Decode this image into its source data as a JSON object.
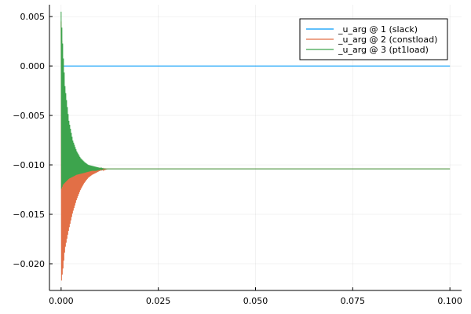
{
  "chart_data": {
    "type": "line",
    "title": "",
    "xlabel": "",
    "ylabel": "",
    "xlim": [
      -0.003,
      0.103
    ],
    "ylim": [
      -0.0227,
      0.0062
    ],
    "grid": true,
    "legend_position": "top-right",
    "x_ticks": [
      0.0,
      0.025,
      0.05,
      0.075,
      0.1
    ],
    "x_tick_labels": [
      "0.000",
      "0.025",
      "0.050",
      "0.075",
      "0.100"
    ],
    "y_ticks": [
      0.005,
      0.0,
      -0.005,
      -0.01,
      -0.015,
      -0.02
    ],
    "y_tick_labels": [
      "0.005",
      "0.000",
      "−0.005",
      "−0.010",
      "−0.015",
      "−0.020"
    ],
    "series": [
      {
        "name": "_u_arg @ 1 (slack)",
        "color": "#009AFA",
        "kind": "line",
        "x": [
          0.0,
          0.1
        ],
        "y": [
          0.0,
          0.0
        ]
      },
      {
        "name": "_u_arg @ 2 (constload)",
        "color": "#E26F46",
        "kind": "oscillation",
        "x_start": 0.0,
        "steady": -0.0104,
        "envelope": {
          "x": [
            0.0,
            0.0005,
            0.001,
            0.002,
            0.003,
            0.004,
            0.005,
            0.006,
            0.007,
            0.008,
            0.009,
            0.01,
            0.011,
            0.012,
            0.013,
            0.1
          ],
          "upper": [
            0.0045,
            -0.0003,
            -0.0035,
            -0.0072,
            -0.0086,
            -0.0094,
            -0.0098,
            -0.01,
            -0.0102,
            -0.0102,
            -0.0103,
            -0.0103,
            -0.0104,
            -0.0104,
            -0.0104,
            -0.0104
          ],
          "lower": [
            -0.022,
            -0.0205,
            -0.0185,
            -0.0165,
            -0.0148,
            -0.0135,
            -0.0125,
            -0.0118,
            -0.0113,
            -0.011,
            -0.0108,
            -0.0106,
            -0.0105,
            -0.0104,
            -0.0104,
            -0.0104
          ]
        }
      },
      {
        "name": "_u_arg @ 3 (pt1load)",
        "color": "#3DA44D",
        "kind": "oscillation",
        "x_start": 0.0,
        "steady": -0.0104,
        "envelope": {
          "x": [
            0.0,
            0.0005,
            0.001,
            0.002,
            0.003,
            0.004,
            0.005,
            0.006,
            0.007,
            0.008,
            0.009,
            0.01,
            0.011,
            0.012,
            0.1
          ],
          "upper": [
            0.0055,
            0.0015,
            -0.002,
            -0.0055,
            -0.0075,
            -0.0086,
            -0.0093,
            -0.0097,
            -0.01,
            -0.0101,
            -0.0102,
            -0.0103,
            -0.0104,
            -0.0104,
            -0.0104
          ],
          "lower": [
            -0.0125,
            -0.012,
            -0.0118,
            -0.0114,
            -0.0112,
            -0.011,
            -0.0109,
            -0.0108,
            -0.0107,
            -0.0106,
            -0.0106,
            -0.0105,
            -0.0104,
            -0.0104,
            -0.0104
          ]
        }
      }
    ]
  }
}
